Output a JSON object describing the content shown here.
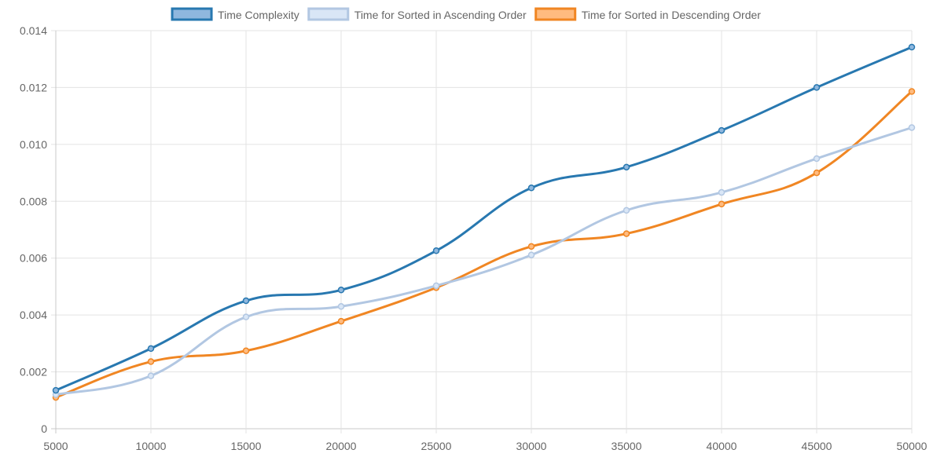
{
  "chart_data": {
    "type": "line",
    "title": "",
    "xlabel": "",
    "ylabel": "",
    "x": [
      5000,
      10000,
      15000,
      20000,
      25000,
      30000,
      35000,
      40000,
      45000,
      50000
    ],
    "xlim": [
      5000,
      50000
    ],
    "ylim": [
      0,
      0.014
    ],
    "x_ticks": [
      "5000",
      "10000",
      "15000",
      "20000",
      "25000",
      "30000",
      "35000",
      "40000",
      "45000",
      "50000"
    ],
    "y_ticks": [
      {
        "value": 0,
        "label": "0"
      },
      {
        "value": 0.002,
        "label": "0.002"
      },
      {
        "value": 0.004,
        "label": "0.004"
      },
      {
        "value": 0.006,
        "label": "0.006"
      },
      {
        "value": 0.008,
        "label": "0.008"
      },
      {
        "value": 0.01,
        "label": "0.010"
      },
      {
        "value": 0.012,
        "label": "0.012"
      },
      {
        "value": 0.014,
        "label": "0.014"
      }
    ],
    "grid": true,
    "legend_position": "top-center",
    "series": [
      {
        "name": "Time Complexity",
        "color": "#2878b0",
        "fill": "#8fb7de",
        "values": [
          0.00135,
          0.00282,
          0.0045,
          0.00488,
          0.00626,
          0.00847,
          0.0092,
          0.01049,
          0.012,
          0.01342
        ]
      },
      {
        "name": "Time for Sorted in Ascending Order",
        "color": "#b2c7e2",
        "fill": "#d9e6f6",
        "values": [
          0.0012,
          0.00186,
          0.00393,
          0.0043,
          0.00503,
          0.00611,
          0.00768,
          0.00831,
          0.0095,
          0.01059
        ]
      },
      {
        "name": "Time for Sorted in Descending Order",
        "color": "#f08623",
        "fill": "#ffbb7f",
        "values": [
          0.0011,
          0.00236,
          0.00274,
          0.00378,
          0.00496,
          0.00641,
          0.00686,
          0.0079,
          0.009,
          0.01186
        ]
      }
    ]
  }
}
